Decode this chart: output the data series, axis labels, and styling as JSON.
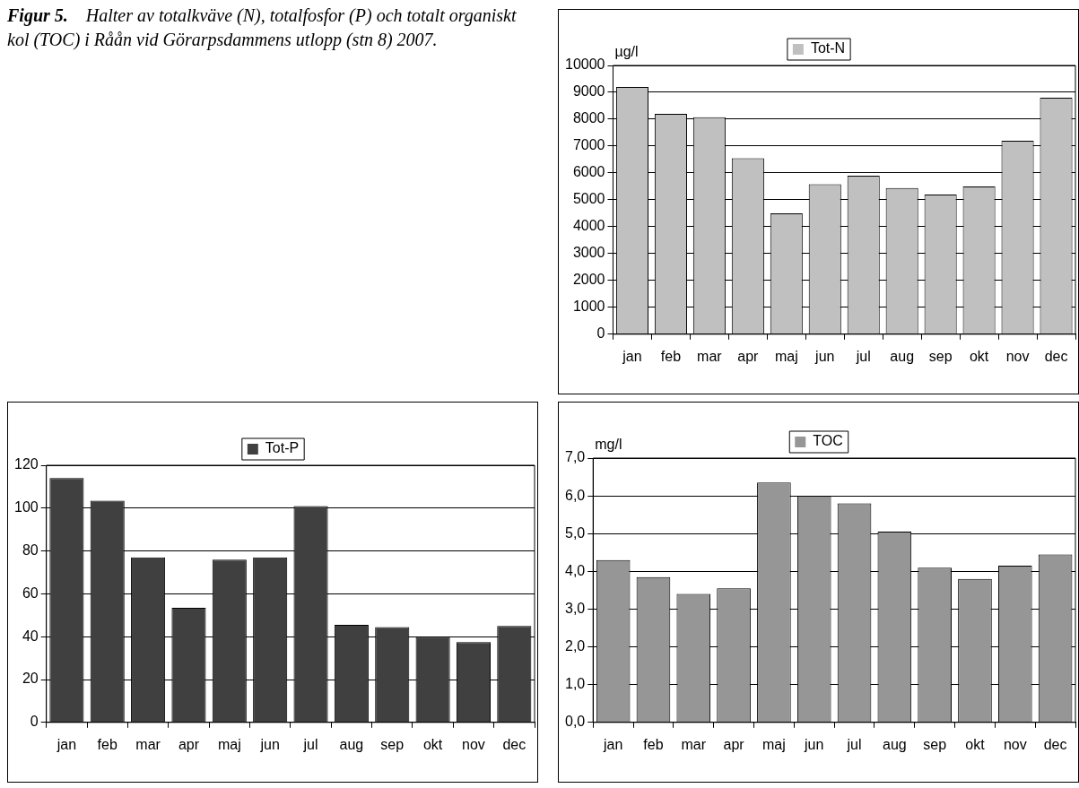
{
  "chart_data": [
    {
      "type": "bar",
      "title": "Figur 5.    Halter av totalkväve (N), totalfosfor (P) och totalt organiskt kol (TOC) i Råån vid Görarpsdammens utlopp (stn 8) 2007.",
      "ylabel": "µg/l",
      "categories": [
        "jan",
        "feb",
        "mar",
        "apr",
        "maj",
        "jun",
        "jul",
        "aug",
        "sep",
        "okt",
        "nov",
        "dec"
      ],
      "series": [
        {
          "name": "Tot-N",
          "color": "#c0c0c0",
          "values": [
            9200,
            8200,
            8070,
            6550,
            4500,
            5580,
            5900,
            5440,
            5200,
            5500,
            7200,
            8800
          ]
        }
      ],
      "ylim": [
        0,
        10000
      ],
      "yticks": [
        0,
        1000,
        2000,
        3000,
        4000,
        5000,
        6000,
        7000,
        8000,
        9000,
        10000
      ],
      "grid": "y",
      "legend": "top"
    },
    {
      "type": "bar",
      "categories": [
        "jan",
        "feb",
        "mar",
        "apr",
        "maj",
        "jun",
        "jul",
        "aug",
        "sep",
        "okt",
        "nov",
        "dec"
      ],
      "series": [
        {
          "name": "Tot-P",
          "color": "#404040",
          "values": [
            114,
            103.5,
            77,
            53.5,
            76,
            77,
            101,
            45.5,
            44.5,
            40,
            37.5,
            45
          ]
        }
      ],
      "ylim": [
        0,
        120
      ],
      "yticks": [
        0,
        20,
        40,
        60,
        80,
        100,
        120
      ],
      "grid": "y",
      "legend": "top"
    },
    {
      "type": "bar",
      "ylabel": "mg/l",
      "categories": [
        "jan",
        "feb",
        "mar",
        "apr",
        "maj",
        "jun",
        "jul",
        "aug",
        "sep",
        "okt",
        "nov",
        "dec"
      ],
      "series": [
        {
          "name": "TOC",
          "color": "#969696",
          "values": [
            4.3,
            3.85,
            3.4,
            3.55,
            6.35,
            6.0,
            5.8,
            5.05,
            4.1,
            3.8,
            4.15,
            4.45
          ]
        }
      ],
      "ylim": [
        0,
        7
      ],
      "yticks": [
        {
          "value": 0,
          "label": "0,0"
        },
        {
          "value": 1,
          "label": "1,0"
        },
        {
          "value": 2,
          "label": "2,0"
        },
        {
          "value": 3,
          "label": "3,0"
        },
        {
          "value": 4,
          "label": "4,0"
        },
        {
          "value": 5,
          "label": "5,0"
        },
        {
          "value": 6,
          "label": "6,0"
        },
        {
          "value": 7,
          "label": "7,0"
        }
      ],
      "grid": "y",
      "legend": "top"
    }
  ]
}
